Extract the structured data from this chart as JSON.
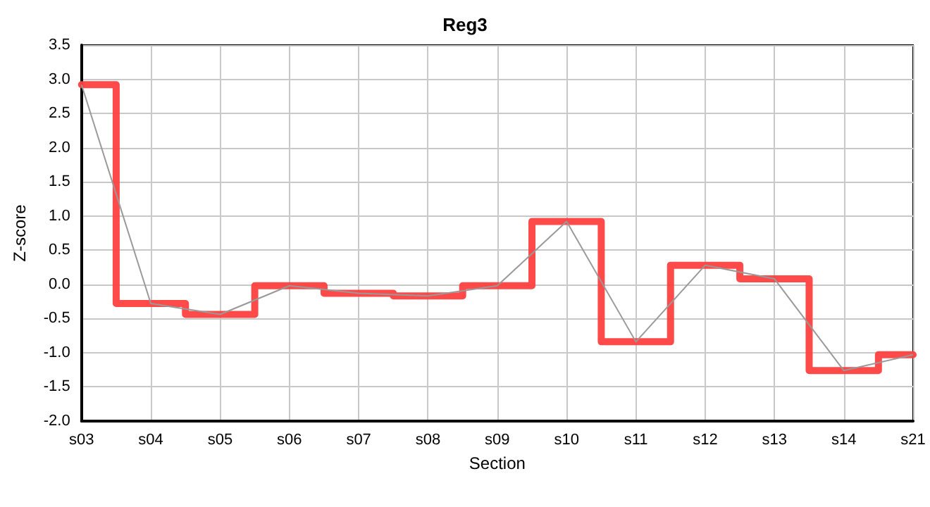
{
  "chart_data": {
    "type": "line",
    "title": "Reg3",
    "xlabel": "Section",
    "ylabel": "Z-score",
    "categories": [
      "s03",
      "s04",
      "s05",
      "s06",
      "s07",
      "s08",
      "s09",
      "s10",
      "s11",
      "s12",
      "s13",
      "s14",
      "s21"
    ],
    "series": [
      {
        "type": "step",
        "color": "#ff4040",
        "values": [
          2.92,
          -0.28,
          -0.44,
          -0.02,
          -0.13,
          -0.17,
          -0.02,
          0.92,
          -0.84,
          0.28,
          0.08,
          -1.26,
          -1.03
        ]
      },
      {
        "color": "#999999",
        "values": [
          2.92,
          -0.28,
          -0.44,
          -0.02,
          -0.13,
          -0.17,
          -0.02,
          0.92,
          -0.84,
          0.28,
          0.08,
          -1.26,
          -1.03
        ]
      }
    ],
    "ylim": [
      -2,
      3.5
    ],
    "yticks": [
      {
        "value": -2,
        "label": "-2.0"
      },
      -1.5,
      {
        "value": -1,
        "label": "-1.0"
      },
      -0.5,
      {
        "value": 0,
        "label": "0.0"
      },
      0.5,
      {
        "value": 1,
        "label": "1.0"
      },
      1.5,
      {
        "value": 2,
        "label": "2.0"
      },
      2.5,
      {
        "value": 3,
        "label": "3.0"
      },
      3.5
    ],
    "grid": true,
    "marker": "none"
  }
}
